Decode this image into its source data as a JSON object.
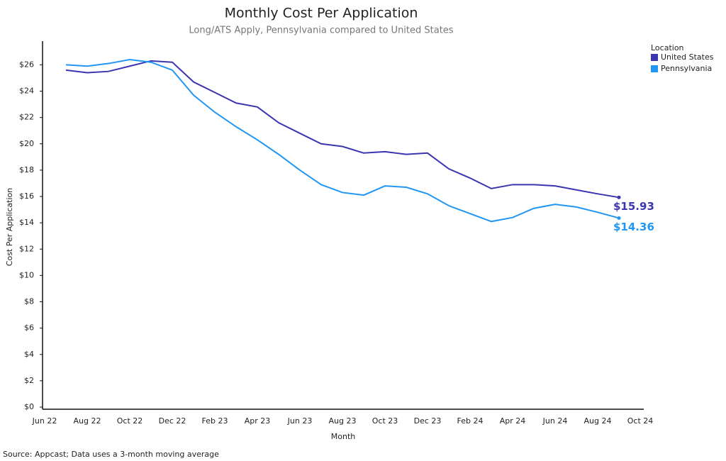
{
  "chart_data": {
    "type": "line",
    "title": "Monthly Cost Per Application",
    "subtitle": "Long/ATS Apply, Pennsylvania compared to United States",
    "x_label": "Month",
    "y_label": "Cost Per Application",
    "source": "Source: Appcast; Data uses a 3-month moving average",
    "legend_title": "Location",
    "legend": "top-right",
    "categories": [
      "Jun 22",
      null,
      "Aug 22",
      null,
      "Oct 22",
      null,
      "Dec 22",
      null,
      "Feb 23",
      null,
      "Apr 23",
      null,
      "Jun 23",
      null,
      "Aug 23",
      null,
      "Oct 23",
      null,
      "Dec 23",
      null,
      "Feb 24",
      null,
      "Apr 24",
      null,
      "Jun 24",
      null,
      "Aug 24",
      null,
      "Oct 24"
    ],
    "series": [
      {
        "name": "United States",
        "color": "#3b35b0",
        "values": [
          null,
          25.6,
          25.4,
          25.5,
          25.9,
          26.3,
          26.2,
          24.7,
          23.9,
          23.1,
          22.8,
          21.6,
          20.8,
          20.0,
          19.8,
          19.3,
          19.4,
          19.2,
          19.3,
          18.1,
          17.4,
          16.6,
          16.9,
          16.9,
          16.8,
          16.5,
          16.2,
          15.93,
          null
        ],
        "value_labels": [
          null,
          null,
          null,
          null,
          null,
          null,
          null,
          null,
          null,
          null,
          null,
          null,
          null,
          null,
          null,
          null,
          null,
          null,
          null,
          null,
          null,
          null,
          null,
          null,
          null,
          null,
          null,
          "$15.93",
          null
        ]
      },
      {
        "name": "Pennsylvania",
        "color": "#2196f3",
        "values": [
          null,
          26.0,
          25.9,
          26.1,
          26.4,
          26.2,
          25.6,
          23.7,
          22.4,
          21.3,
          20.3,
          19.2,
          18.0,
          16.9,
          16.3,
          16.1,
          16.8,
          16.7,
          16.2,
          15.3,
          14.7,
          14.1,
          14.4,
          15.1,
          15.4,
          15.2,
          14.8,
          14.36,
          null
        ],
        "value_labels": [
          null,
          null,
          null,
          null,
          null,
          null,
          null,
          null,
          null,
          null,
          null,
          null,
          null,
          null,
          null,
          null,
          null,
          null,
          null,
          null,
          null,
          null,
          null,
          null,
          null,
          null,
          null,
          "$14.36",
          null
        ]
      }
    ],
    "ylim": [
      0,
      27.8
    ],
    "yticks": [
      {
        "value": 0,
        "label": "$0"
      },
      {
        "value": 2,
        "label": "$2"
      },
      {
        "value": 4,
        "label": "$4"
      },
      {
        "value": 6,
        "label": "$6"
      },
      {
        "value": 8,
        "label": "$8"
      },
      {
        "value": 10,
        "label": "$10"
      },
      {
        "value": 12,
        "label": "$12"
      },
      {
        "value": 14,
        "label": "$14"
      },
      {
        "value": 16,
        "label": "$16"
      },
      {
        "value": 18,
        "label": "$18"
      },
      {
        "value": 20,
        "label": "$20"
      },
      {
        "value": 22,
        "label": "$22"
      },
      {
        "value": 24,
        "label": "$24"
      },
      {
        "value": 26,
        "label": "$26"
      }
    ],
    "grid": false
  }
}
